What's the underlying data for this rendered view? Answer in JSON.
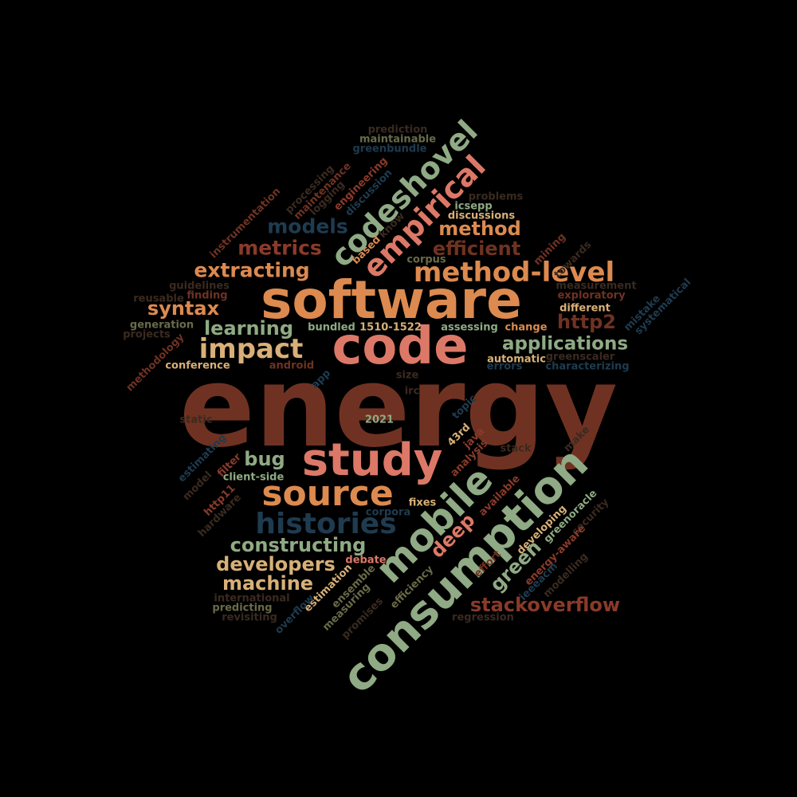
{
  "palette": {
    "rust": "#6f3222",
    "orange": "#dc8a50",
    "salmon": "#dc7867",
    "sage": "#8faa84",
    "tan": "#d8b078",
    "navy": "#1f3b4f",
    "brick": "#8a3a2a",
    "olive": "#6a6b48",
    "dim": "#3a2a20"
  },
  "words": [
    {
      "text": "energy",
      "color": "#6f3222"
    },
    {
      "text": "software",
      "color": "#dc8a50"
    },
    {
      "text": "code",
      "color": "#dc7867"
    },
    {
      "text": "study",
      "color": "#dc7867"
    },
    {
      "text": "consumption",
      "color": "#8faa84"
    },
    {
      "text": "mobile",
      "color": "#8faa84"
    },
    {
      "text": "source",
      "color": "#dc8a50"
    },
    {
      "text": "histories",
      "color": "#1f3b4f"
    },
    {
      "text": "method-level",
      "color": "#dc8a50"
    },
    {
      "text": "codeshovel",
      "color": "#8faa84"
    },
    {
      "text": "empirical",
      "color": "#dc7867"
    },
    {
      "text": "impact",
      "color": "#d8b078"
    },
    {
      "text": "applications",
      "color": "#8faa84"
    },
    {
      "text": "stackoverflow",
      "color": "#8a3a2a"
    },
    {
      "text": "constructing",
      "color": "#8faa84"
    },
    {
      "text": "developers",
      "color": "#d8b078"
    },
    {
      "text": "machine",
      "color": "#d8b078"
    },
    {
      "text": "extracting",
      "color": "#dc8a50"
    },
    {
      "text": "metrics",
      "color": "#8a3a2a"
    },
    {
      "text": "models",
      "color": "#1f3b4f"
    },
    {
      "text": "method",
      "color": "#dc8a50"
    },
    {
      "text": "efficient",
      "color": "#6f3222"
    },
    {
      "text": "learning",
      "color": "#8faa84"
    },
    {
      "text": "syntax",
      "color": "#dc8a50"
    },
    {
      "text": "http2",
      "color": "#6f3222"
    },
    {
      "text": "bug",
      "color": "#8faa84"
    },
    {
      "text": "green",
      "color": "#8faa84"
    },
    {
      "text": "deep",
      "color": "#dc7867"
    },
    {
      "text": "prediction",
      "color": "#3a2a20"
    },
    {
      "text": "maintainable",
      "color": "#6a6b48"
    },
    {
      "text": "greenbundle",
      "color": "#1f3b4f"
    },
    {
      "text": "problems",
      "color": "#3a2a20"
    },
    {
      "text": "icsepp",
      "color": "#8faa84"
    },
    {
      "text": "discussions",
      "color": "#d8b078"
    },
    {
      "text": "corpus",
      "color": "#6a6b48"
    },
    {
      "text": "measurement",
      "color": "#3a2a20"
    },
    {
      "text": "exploratory",
      "color": "#6f3222"
    },
    {
      "text": "different",
      "color": "#d8b078"
    },
    {
      "text": "guidelines",
      "color": "#3a2a20"
    },
    {
      "text": "finding",
      "color": "#6f3222"
    },
    {
      "text": "reusable",
      "color": "#3a2a20"
    },
    {
      "text": "generation",
      "color": "#6a6b48"
    },
    {
      "text": "projects",
      "color": "#3a2a20"
    },
    {
      "text": "bundled",
      "color": "#8faa84"
    },
    {
      "text": "1510-1522",
      "color": "#d8b078"
    },
    {
      "text": "assessing",
      "color": "#8faa84"
    },
    {
      "text": "change",
      "color": "#dc8a50"
    },
    {
      "text": "conference",
      "color": "#d8b078"
    },
    {
      "text": "android",
      "color": "#6f3222"
    },
    {
      "text": "automatic",
      "color": "#d8b078"
    },
    {
      "text": "errors",
      "color": "#1f3b4f"
    },
    {
      "text": "greenscaler",
      "color": "#3a2a20"
    },
    {
      "text": "characterizing",
      "color": "#1f3b4f"
    },
    {
      "text": "size",
      "color": "#3a2a20"
    },
    {
      "text": "irc",
      "color": "#3a2a20"
    },
    {
      "text": "2021",
      "color": "#8faa84"
    },
    {
      "text": "static",
      "color": "#3a2a20"
    },
    {
      "text": "client-side",
      "color": "#8faa84"
    },
    {
      "text": "fixes",
      "color": "#d8b078"
    },
    {
      "text": "corpora",
      "color": "#1f3b4f"
    },
    {
      "text": "debate",
      "color": "#dc7867"
    },
    {
      "text": "international",
      "color": "#3a2a20"
    },
    {
      "text": "predicting",
      "color": "#6a6b48"
    },
    {
      "text": "revisiting",
      "color": "#3a2a20"
    },
    {
      "text": "regression",
      "color": "#3a2a20"
    },
    {
      "text": "stack",
      "color": "#3a2a20"
    },
    {
      "text": "processing",
      "color": "#3a2a20"
    },
    {
      "text": "maintenance",
      "color": "#6f3222"
    },
    {
      "text": "logging",
      "color": "#3a2a20"
    },
    {
      "text": "engineering",
      "color": "#8a3a2a"
    },
    {
      "text": "discussion",
      "color": "#1f3b4f"
    },
    {
      "text": "instrumentation",
      "color": "#6f3222"
    },
    {
      "text": "know",
      "color": "#3a2a20"
    },
    {
      "text": "based",
      "color": "#dc8a50"
    },
    {
      "text": "mining",
      "color": "#6f3222"
    },
    {
      "text": "towards",
      "color": "#3a2a20"
    },
    {
      "text": "mistake",
      "color": "#1f3b4f"
    },
    {
      "text": "systematical",
      "color": "#1f3b4f"
    },
    {
      "text": "methodology",
      "color": "#6f3222"
    },
    {
      "text": "app",
      "color": "#1f3b4f"
    },
    {
      "text": "topic",
      "color": "#1f3b4f"
    },
    {
      "text": "43rd",
      "color": "#d8b078"
    },
    {
      "text": "java",
      "color": "#8a3a2a"
    },
    {
      "text": "analysis",
      "color": "#8a3a2a"
    },
    {
      "text": "make",
      "color": "#3a2a20"
    },
    {
      "text": "estimating",
      "color": "#1f3b4f"
    },
    {
      "text": "filter",
      "color": "#8a3a2a"
    },
    {
      "text": "model",
      "color": "#3a2a20"
    },
    {
      "text": "http11",
      "color": "#8a3a2a"
    },
    {
      "text": "hardware",
      "color": "#3a2a20"
    },
    {
      "text": "available",
      "color": "#8a3a2a"
    },
    {
      "text": "greenoracle",
      "color": "#8faa84"
    },
    {
      "text": "security",
      "color": "#3a2a20"
    },
    {
      "text": "developing",
      "color": "#d8b078"
    },
    {
      "text": "effort",
      "color": "#6f3222"
    },
    {
      "text": "energy-aware",
      "color": "#8a3a2a"
    },
    {
      "text": "ieeeacm",
      "color": "#1f3b4f"
    },
    {
      "text": "modelling",
      "color": "#3a2a20"
    },
    {
      "text": "efficiency",
      "color": "#6a6b48"
    },
    {
      "text": "ensemble",
      "color": "#6a6b48"
    },
    {
      "text": "estimation",
      "color": "#d8b078"
    },
    {
      "text": "measuring",
      "color": "#6a6b48"
    },
    {
      "text": "promises",
      "color": "#3a2a20"
    },
    {
      "text": "overflow",
      "color": "#1f3b4f"
    }
  ]
}
